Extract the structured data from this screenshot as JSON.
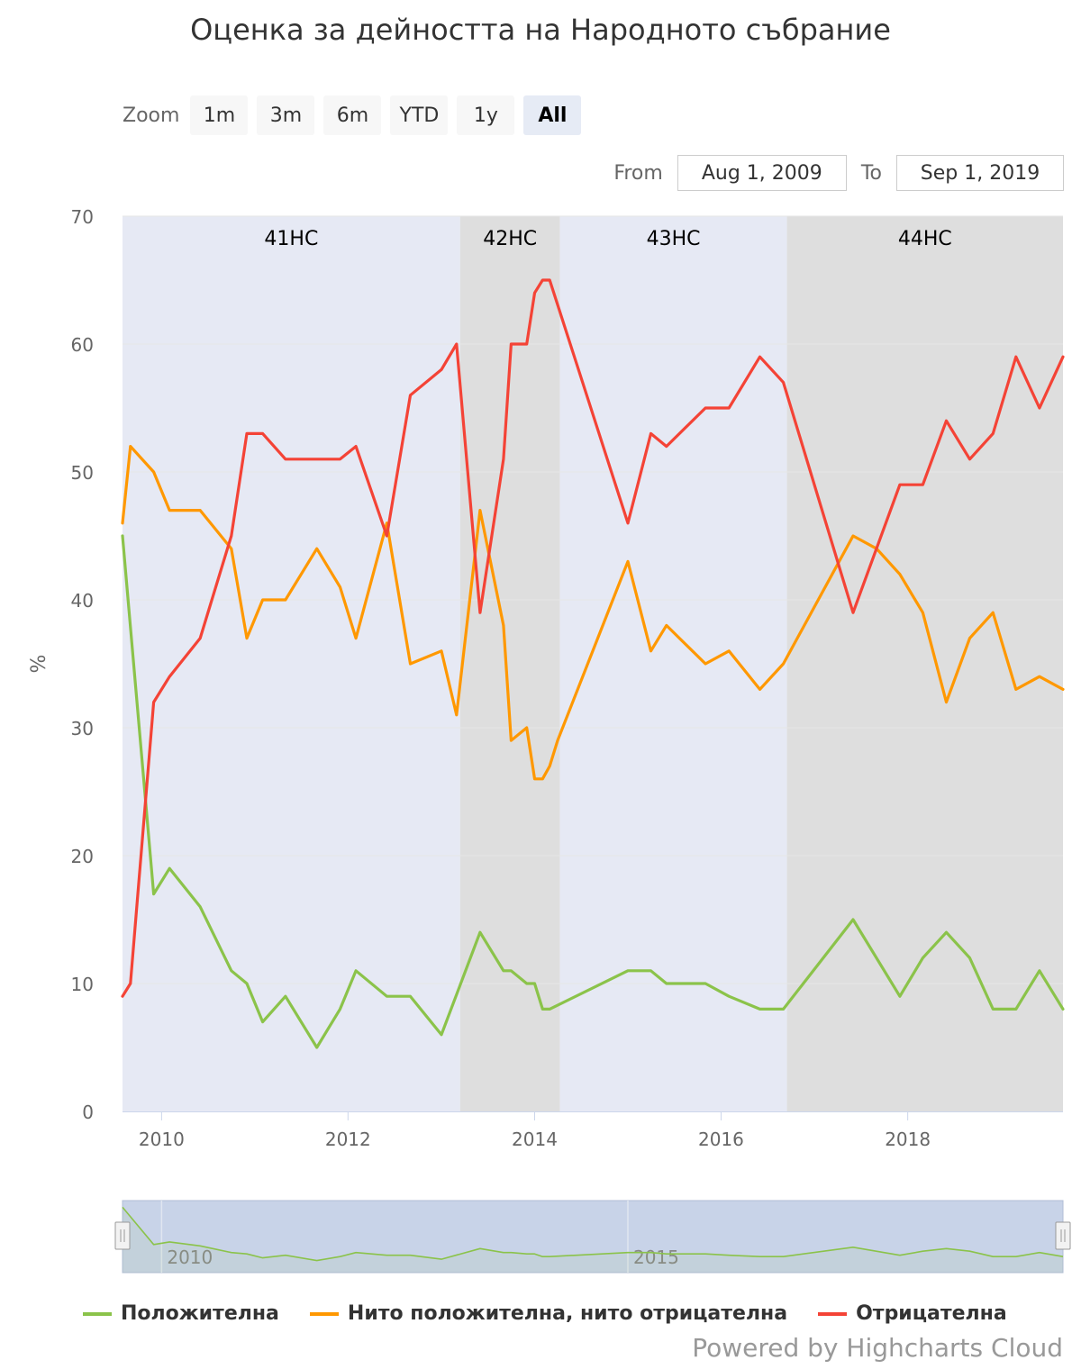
{
  "title": "Оценка за дейността на Народното събрание",
  "zoom": {
    "label": "Zoom",
    "buttons": [
      "1m",
      "3m",
      "6m",
      "YTD",
      "1y",
      "All"
    ],
    "active": "All"
  },
  "range": {
    "from_label": "From",
    "from_value": "Aug 1, 2009",
    "to_label": "To",
    "to_value": "Sep 1, 2019"
  },
  "credits": "Powered by Highcharts Cloud",
  "colors": {
    "positive": "#8bc34a",
    "neutral": "#ff9800",
    "negative": "#f44336",
    "band_light": "#e6e9f4",
    "band_dark": "#dedede",
    "navigator_mask": "#c8d3e8"
  },
  "navigator": {
    "tick_labels": [
      "2010",
      "2015"
    ]
  },
  "chart_data": {
    "type": "line",
    "title": "Оценка за дейността на Народното събрание",
    "ylabel": "%",
    "xlabel": "",
    "x_range": [
      "2009-08-01",
      "2019-09-01"
    ],
    "ylim": [
      0,
      70
    ],
    "y_ticks": [
      0,
      10,
      20,
      30,
      40,
      50,
      60,
      70
    ],
    "x_ticks": [
      "2010",
      "2012",
      "2014",
      "2016",
      "2018"
    ],
    "grid": "horizontal",
    "legend_position": "bottom",
    "plot_bands": [
      {
        "label": "41НС",
        "from": "2009-08-01",
        "to": "2013-03-15",
        "style": "light"
      },
      {
        "label": "42НС",
        "from": "2013-03-15",
        "to": "2014-04-10",
        "style": "dark"
      },
      {
        "label": "43НС",
        "from": "2014-04-10",
        "to": "2016-09-15",
        "style": "light"
      },
      {
        "label": "44НС",
        "from": "2016-09-15",
        "to": "2019-09-01",
        "style": "dark"
      }
    ],
    "series": [
      {
        "name": "Положителна",
        "color": "#8bc34a",
        "points": [
          [
            "2009-08-01",
            45
          ],
          [
            "2009-12-01",
            17
          ],
          [
            "2010-02-01",
            19
          ],
          [
            "2010-06-01",
            16
          ],
          [
            "2010-10-01",
            11
          ],
          [
            "2010-12-01",
            10
          ],
          [
            "2011-02-01",
            7
          ],
          [
            "2011-05-01",
            9
          ],
          [
            "2011-09-01",
            5
          ],
          [
            "2011-12-01",
            8
          ],
          [
            "2012-02-01",
            11
          ],
          [
            "2012-06-01",
            9
          ],
          [
            "2012-09-01",
            9
          ],
          [
            "2013-01-01",
            6
          ],
          [
            "2013-06-01",
            14
          ],
          [
            "2013-09-01",
            11
          ],
          [
            "2013-10-01",
            11
          ],
          [
            "2013-12-01",
            10
          ],
          [
            "2014-01-01",
            10
          ],
          [
            "2014-02-01",
            8
          ],
          [
            "2014-03-01",
            8
          ],
          [
            "2015-01-01",
            11
          ],
          [
            "2015-04-01",
            11
          ],
          [
            "2015-06-01",
            10
          ],
          [
            "2015-11-01",
            10
          ],
          [
            "2016-02-01",
            9
          ],
          [
            "2016-06-01",
            8
          ],
          [
            "2016-09-01",
            8
          ],
          [
            "2017-06-01",
            15
          ],
          [
            "2017-12-01",
            9
          ],
          [
            "2018-03-01",
            12
          ],
          [
            "2018-06-01",
            14
          ],
          [
            "2018-09-01",
            12
          ],
          [
            "2018-12-01",
            8
          ],
          [
            "2019-03-01",
            8
          ],
          [
            "2019-06-01",
            11
          ],
          [
            "2019-09-01",
            8
          ]
        ]
      },
      {
        "name": "Нито положителна, нито отрицателна",
        "color": "#ff9800",
        "points": [
          [
            "2009-08-01",
            46
          ],
          [
            "2009-09-01",
            52
          ],
          [
            "2009-12-01",
            50
          ],
          [
            "2010-02-01",
            47
          ],
          [
            "2010-06-01",
            47
          ],
          [
            "2010-10-01",
            44
          ],
          [
            "2010-12-01",
            37
          ],
          [
            "2011-02-01",
            40
          ],
          [
            "2011-05-01",
            40
          ],
          [
            "2011-09-01",
            44
          ],
          [
            "2011-12-01",
            41
          ],
          [
            "2012-02-01",
            37
          ],
          [
            "2012-06-01",
            46
          ],
          [
            "2012-09-01",
            35
          ],
          [
            "2013-01-01",
            36
          ],
          [
            "2013-03-01",
            31
          ],
          [
            "2013-06-01",
            47
          ],
          [
            "2013-09-01",
            38
          ],
          [
            "2013-10-01",
            29
          ],
          [
            "2013-12-01",
            30
          ],
          [
            "2014-01-01",
            26
          ],
          [
            "2014-02-01",
            26
          ],
          [
            "2014-03-01",
            27
          ],
          [
            "2014-04-01",
            29
          ],
          [
            "2015-01-01",
            43
          ],
          [
            "2015-04-01",
            36
          ],
          [
            "2015-06-01",
            38
          ],
          [
            "2015-11-01",
            35
          ],
          [
            "2016-02-01",
            36
          ],
          [
            "2016-06-01",
            33
          ],
          [
            "2016-09-01",
            35
          ],
          [
            "2017-06-01",
            45
          ],
          [
            "2017-09-01",
            44
          ],
          [
            "2017-12-01",
            42
          ],
          [
            "2018-03-01",
            39
          ],
          [
            "2018-06-01",
            32
          ],
          [
            "2018-09-01",
            37
          ],
          [
            "2018-12-01",
            39
          ],
          [
            "2019-03-01",
            33
          ],
          [
            "2019-06-01",
            34
          ],
          [
            "2019-09-01",
            33
          ]
        ]
      },
      {
        "name": "Отрицателна",
        "color": "#f44336",
        "points": [
          [
            "2009-08-01",
            9
          ],
          [
            "2009-09-01",
            10
          ],
          [
            "2009-12-01",
            32
          ],
          [
            "2010-02-01",
            34
          ],
          [
            "2010-06-01",
            37
          ],
          [
            "2010-10-01",
            45
          ],
          [
            "2010-12-01",
            53
          ],
          [
            "2011-02-01",
            53
          ],
          [
            "2011-05-01",
            51
          ],
          [
            "2011-09-01",
            51
          ],
          [
            "2011-12-01",
            51
          ],
          [
            "2012-02-01",
            52
          ],
          [
            "2012-06-01",
            45
          ],
          [
            "2012-09-01",
            56
          ],
          [
            "2013-01-01",
            58
          ],
          [
            "2013-03-01",
            60
          ],
          [
            "2013-06-01",
            39
          ],
          [
            "2013-09-01",
            51
          ],
          [
            "2013-10-01",
            60
          ],
          [
            "2013-12-01",
            60
          ],
          [
            "2014-01-01",
            64
          ],
          [
            "2014-02-01",
            65
          ],
          [
            "2014-03-01",
            65
          ],
          [
            "2015-01-01",
            46
          ],
          [
            "2015-04-01",
            53
          ],
          [
            "2015-06-01",
            52
          ],
          [
            "2015-11-01",
            55
          ],
          [
            "2016-02-01",
            55
          ],
          [
            "2016-06-01",
            59
          ],
          [
            "2016-09-01",
            57
          ],
          [
            "2017-06-01",
            39
          ],
          [
            "2017-12-01",
            49
          ],
          [
            "2018-03-01",
            49
          ],
          [
            "2018-06-01",
            54
          ],
          [
            "2018-09-01",
            51
          ],
          [
            "2018-12-01",
            53
          ],
          [
            "2019-03-01",
            59
          ],
          [
            "2019-06-01",
            55
          ],
          [
            "2019-09-01",
            59
          ]
        ]
      }
    ]
  }
}
